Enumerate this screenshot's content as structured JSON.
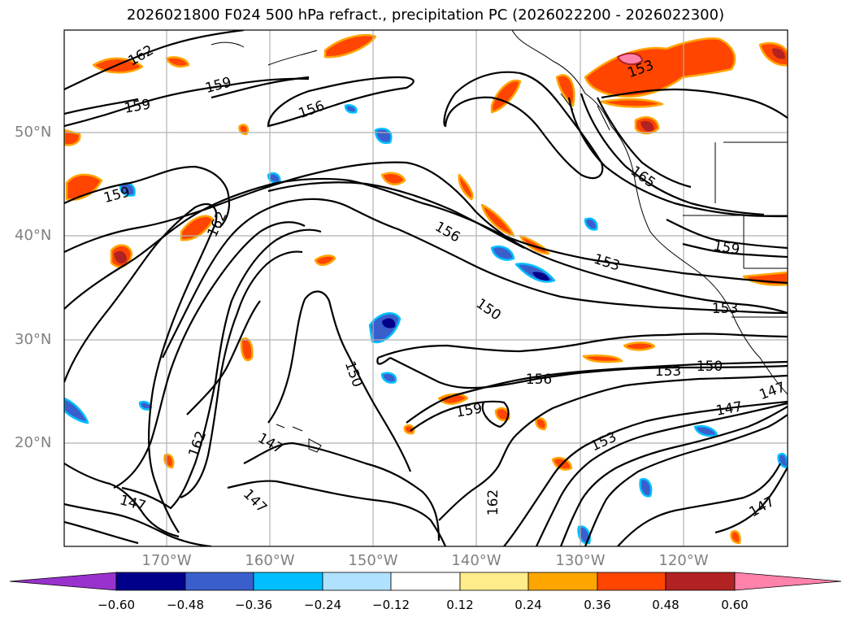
{
  "title": "2026021800 F024 500 hPa refract., precipitation PC (2026022200 - 2026022300)",
  "lat_labels": [
    "50°N",
    "40°N",
    "30°N",
    "20°N"
  ],
  "lon_labels": [
    "170°W",
    "160°W",
    "150°W",
    "140°W",
    "130°W",
    "120°W"
  ],
  "contour_labels": [
    "162",
    "159",
    "159",
    "156",
    "153",
    "159",
    "156",
    "153",
    "150",
    "153",
    "150",
    "147",
    "156",
    "159",
    "162",
    "147",
    "147",
    "153",
    "162",
    "147",
    "165",
    "162",
    "159",
    "153",
    "150",
    "147",
    "147",
    "153",
    "150",
    "159"
  ],
  "colorbar": {
    "colors": [
      "#9932cc",
      "#00008b",
      "#3a5fcd",
      "#00bfff",
      "#b0e2ff",
      "#ffffff",
      "#ffec8b",
      "#ffa500",
      "#ff4500",
      "#b22222",
      "#ff82ab"
    ],
    "tick_labels": [
      "−0.60",
      "−0.48",
      "−0.36",
      "−0.24",
      "−0.12",
      "0.12",
      "0.24",
      "0.36",
      "0.48",
      "0.60"
    ]
  },
  "palette": {
    "line": "#000000",
    "grid": "#b0b0b0",
    "axis_label": "#808080",
    "orange_fill": "#ff4500",
    "orange_edge": "#ffa500",
    "yellow_edge": "#ffec8b",
    "blue_fill": "#3a5fcd",
    "light_blue": "#00bfff",
    "dark_blue": "#00008b",
    "red": "#b22222",
    "pink": "#ff82ab"
  }
}
